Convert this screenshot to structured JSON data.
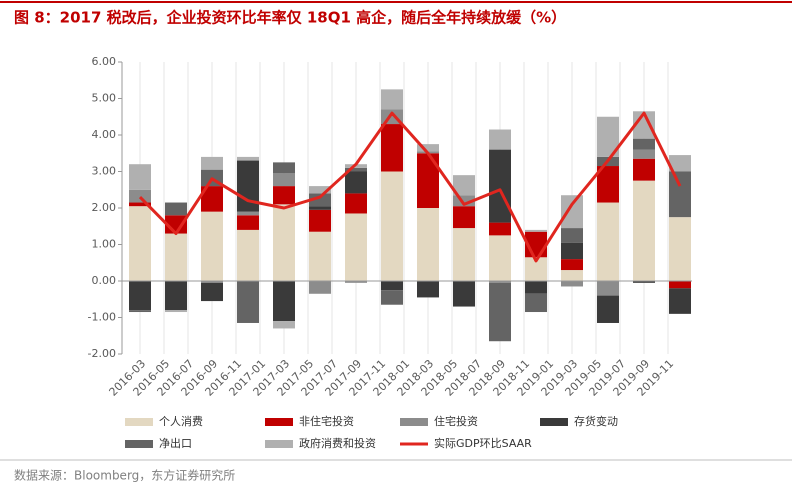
{
  "chart_data": {
    "type": "stacked-bar-line",
    "title": "图 8：2017 税改后，企业投资环比年率仅 18Q1 高企，随后全年持续放缓（%）",
    "source": "数据来源：Bloomberg，东方证券研究所",
    "categories": [
      null,
      null,
      null,
      null,
      null,
      null,
      null,
      null,
      null,
      null,
      null,
      null,
      null,
      null,
      null,
      null
    ],
    "xtick_labels": [
      "2016-03",
      "2016-05",
      "2016-07",
      "2016-09",
      "2016-11",
      "2017-01",
      "2017-03",
      "2017-05",
      "2017-07",
      "2017-09",
      "2017-11",
      "2018-01",
      "2018-03",
      "2018-05",
      "2018-07",
      "2018-09",
      "2018-11",
      "2019-01",
      "2019-03",
      "2019-05",
      "2019-07",
      "2019-09",
      "2019-11"
    ],
    "ylim": [
      -2,
      6
    ],
    "yticks": [
      {
        "value": 6,
        "label": "6.00"
      },
      {
        "value": 5,
        "label": "5.00"
      },
      {
        "value": 4,
        "label": "4.00"
      },
      {
        "value": 3,
        "label": "3.00"
      },
      {
        "value": 2,
        "label": "2.00"
      },
      {
        "value": 1,
        "label": "1.00"
      },
      {
        "value": 0,
        "label": "0.00"
      },
      {
        "value": -1,
        "label": "-1.00"
      },
      {
        "value": -2,
        "label": "-2.00"
      }
    ],
    "series": [
      {
        "name": "个人消费",
        "color": "#e3d8c1",
        "values": [
          2.05,
          1.3,
          1.9,
          1.4,
          2.1,
          1.35,
          1.85,
          3.0,
          2.0,
          1.45,
          1.25,
          0.65,
          0.3,
          2.15,
          2.75,
          1.75
        ]
      },
      {
        "name": "非住宅投资",
        "color": "#c00000",
        "values": [
          0.1,
          0.5,
          0.7,
          0.4,
          0.5,
          0.6,
          0.55,
          1.3,
          1.5,
          0.6,
          0.35,
          0.7,
          0.3,
          1.0,
          0.6,
          -0.2
        ]
      },
      {
        "name": "住宅投资",
        "color": "#8c8c8c",
        "values": [
          0.35,
          0,
          -0.05,
          0.1,
          0.35,
          -0.35,
          -0.05,
          0.4,
          0.05,
          0.3,
          -0.05,
          0,
          -0.15,
          -0.4,
          0.25,
          0
        ]
      },
      {
        "name": "存货变动",
        "color": "#3a3a3a",
        "values": [
          -0.8,
          -0.8,
          -0.5,
          1.4,
          -1.1,
          0.1,
          0.6,
          -0.25,
          -0.45,
          -0.7,
          2.0,
          -0.35,
          0.45,
          -0.75,
          -0.05,
          -0.7
        ]
      },
      {
        "name": "净出口",
        "color": "#646464",
        "values": [
          -0.05,
          0.35,
          0.45,
          -1.15,
          0.3,
          0.35,
          0.1,
          -0.4,
          0,
          0,
          -1.6,
          -0.5,
          0.4,
          0.25,
          0.3,
          1.25
        ]
      },
      {
        "name": "政府消费和投资",
        "color": "#b0b0b0",
        "values": [
          0.7,
          -0.05,
          0.35,
          0.1,
          -0.2,
          0.2,
          0.1,
          0.55,
          0.2,
          0.55,
          0.55,
          0.05,
          0.9,
          1.1,
          0.75,
          0.45
        ]
      }
    ],
    "line": {
      "name": "实际GDP环比SAAR",
      "color": "#e0261f",
      "values": [
        2.3,
        1.3,
        2.8,
        2.2,
        2.0,
        2.3,
        3.2,
        4.6,
        3.5,
        2.1,
        2.5,
        0.55,
        2.1,
        3.3,
        4.6,
        2.6
      ]
    }
  }
}
